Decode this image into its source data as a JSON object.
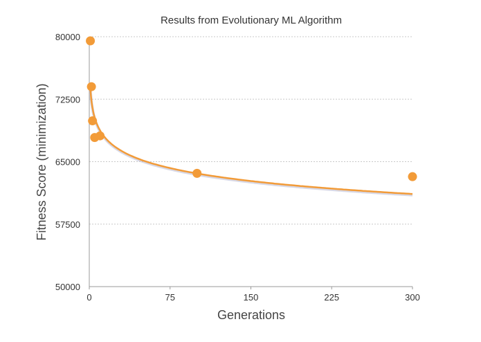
{
  "chart_data": {
    "type": "scatter",
    "title": "Results from Evolutionary ML Algorithm",
    "xlabel": "Generations",
    "ylabel": "Fitness Score (minimization)",
    "xlim": [
      0,
      300
    ],
    "ylim": [
      50000,
      80000
    ],
    "x_ticks": [
      "0",
      "75",
      "150",
      "225",
      "300"
    ],
    "y_ticks": [
      "80000",
      "72500",
      "65000",
      "57500",
      "50000"
    ],
    "grid": true,
    "legend": "none",
    "color": "#f29b38",
    "trendline_color": "#f29b38",
    "trendline_shadow_color": "#b8b8d0",
    "series": [
      {
        "points": [
          {
            "x": 1,
            "y": 79500
          },
          {
            "x": 2,
            "y": 74000
          },
          {
            "x": 3,
            "y": 69900
          },
          {
            "x": 5,
            "y": 67900
          },
          {
            "x": 10,
            "y": 68100
          },
          {
            "x": 100,
            "y": 63600
          },
          {
            "x": 300,
            "y": 63200
          }
        ]
      }
    ],
    "trendline": {
      "type": "logarithmic",
      "a": 73900,
      "b": -2240
    }
  }
}
